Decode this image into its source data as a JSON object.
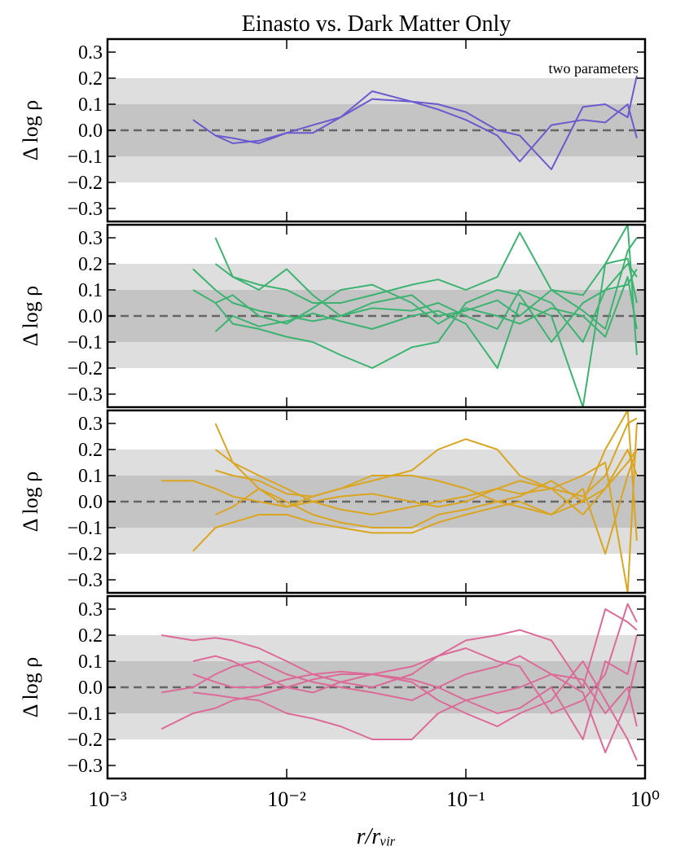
{
  "chart_data": [
    {
      "type": "line",
      "title": "Einasto vs. Dark Matter Only",
      "annotation": "two parameters",
      "ylabel": "Δ log ρ",
      "log_x": true,
      "xlim": [
        0.001,
        1
      ],
      "ylim": [
        -0.35,
        0.35
      ],
      "yticks": [
        {
          "value": -0.3,
          "label": "−0.3"
        },
        {
          "value": -0.2,
          "label": "−0.2"
        },
        {
          "value": -0.1,
          "label": "−0.1"
        },
        {
          "value": 0,
          "label": "0.0"
        },
        0.1,
        0.2,
        0.3
      ],
      "bands": [
        {
          "limit": 0.2,
          "color": "#dedede"
        },
        {
          "limit": 0.1,
          "color": "#c4c4c4"
        }
      ],
      "reference_line": 0,
      "color": "#6a5acd",
      "x": [
        0.002,
        0.003,
        0.004,
        0.005,
        0.007,
        0.01,
        0.014,
        0.02,
        0.03,
        0.05,
        0.07,
        0.1,
        0.15,
        0.2,
        0.3,
        0.45,
        0.6,
        0.8,
        0.9
      ],
      "series": [
        {
          "values": [
            null,
            0.04,
            -0.02,
            -0.05,
            -0.04,
            -0.01,
            0.02,
            0.05,
            0.12,
            0.11,
            0.08,
            0.04,
            -0.02,
            -0.12,
            0.02,
            0.04,
            0.03,
            0.1,
            -0.03
          ]
        },
        {
          "values": [
            null,
            null,
            -0.02,
            -0.03,
            -0.05,
            -0.01,
            -0.01,
            0.05,
            0.15,
            0.11,
            0.1,
            0.07,
            0.0,
            -0.02,
            -0.15,
            0.09,
            0.1,
            0.05,
            0.21
          ]
        }
      ]
    },
    {
      "type": "line",
      "ylabel": "Δ log ρ",
      "log_x": true,
      "xlim": [
        0.001,
        1
      ],
      "ylim": [
        -0.35,
        0.35
      ],
      "yticks": [
        {
          "value": -0.3,
          "label": "−0.3"
        },
        {
          "value": -0.2,
          "label": "−0.2"
        },
        {
          "value": -0.1,
          "label": "−0.1"
        },
        {
          "value": 0,
          "label": "0.0"
        },
        0.1,
        0.2,
        0.3
      ],
      "bands": [
        {
          "limit": 0.2,
          "color": "#dedede"
        },
        {
          "limit": 0.1,
          "color": "#c4c4c4"
        }
      ],
      "reference_line": 0,
      "color": "#3cb371",
      "x": [
        0.002,
        0.003,
        0.004,
        0.005,
        0.007,
        0.01,
        0.014,
        0.02,
        0.03,
        0.05,
        0.07,
        0.1,
        0.15,
        0.2,
        0.3,
        0.45,
        0.6,
        0.8,
        0.9
      ],
      "series": [
        {
          "values": [
            null,
            0.18,
            0.1,
            0.05,
            0.02,
            0.0,
            -0.02,
            0.0,
            0.03,
            0.02,
            0.05,
            0.0,
            -0.05,
            0.1,
            0.05,
            -0.1,
            0.1,
            0.2,
            0.15
          ]
        },
        {
          "values": [
            null,
            null,
            0.3,
            0.15,
            0.12,
            0.1,
            0.05,
            0.05,
            0.08,
            0.12,
            0.14,
            0.1,
            0.15,
            0.32,
            0.1,
            0.02,
            -0.05,
            0.25,
            0.3
          ]
        },
        {
          "values": [
            null,
            null,
            -0.06,
            0.0,
            -0.04,
            -0.02,
            0.01,
            -0.02,
            -0.05,
            0.0,
            0.02,
            -0.03,
            -0.2,
            0.05,
            0.0,
            -0.35,
            0.2,
            0.35,
            -0.15
          ]
        },
        {
          "values": [
            null,
            0.1,
            0.05,
            -0.03,
            -0.05,
            -0.08,
            -0.1,
            -0.15,
            -0.2,
            -0.12,
            -0.1,
            0.05,
            0.1,
            0.08,
            -0.1,
            0.05,
            0.1,
            0.12,
            0.18
          ]
        },
        {
          "values": [
            null,
            null,
            0.2,
            0.15,
            0.1,
            0.18,
            0.08,
            0.0,
            0.05,
            0.08,
            0.0,
            0.02,
            0.06,
            0.0,
            0.1,
            0.08,
            0.2,
            0.22,
            0.05
          ]
        },
        {
          "values": [
            null,
            null,
            0.05,
            0.08,
            0.0,
            -0.03,
            0.03,
            0.1,
            0.12,
            0.05,
            -0.03,
            0.03,
            0.0,
            -0.03,
            0.03,
            0.0,
            -0.08,
            0.15,
            -0.05
          ]
        }
      ]
    },
    {
      "type": "line",
      "ylabel": "Δ log ρ",
      "log_x": true,
      "xlim": [
        0.001,
        1
      ],
      "ylim": [
        -0.35,
        0.35
      ],
      "yticks": [
        {
          "value": -0.3,
          "label": "−0.3"
        },
        {
          "value": -0.2,
          "label": "−0.2"
        },
        {
          "value": -0.1,
          "label": "−0.1"
        },
        {
          "value": 0,
          "label": "0.0"
        },
        0.1,
        0.2,
        0.3
      ],
      "bands": [
        {
          "limit": 0.2,
          "color": "#dedede"
        },
        {
          "limit": 0.1,
          "color": "#c4c4c4"
        }
      ],
      "reference_line": 0,
      "color": "#daa520",
      "x": [
        0.002,
        0.003,
        0.004,
        0.005,
        0.007,
        0.01,
        0.014,
        0.02,
        0.03,
        0.05,
        0.07,
        0.1,
        0.15,
        0.2,
        0.3,
        0.45,
        0.6,
        0.8,
        0.9
      ],
      "series": [
        {
          "values": [
            0.08,
            0.08,
            0.05,
            0.02,
            0.0,
            -0.02,
            0.02,
            0.05,
            0.08,
            0.12,
            0.2,
            0.24,
            0.2,
            0.1,
            0.05,
            0.02,
            0.1,
            0.3,
            0.32
          ]
        },
        {
          "values": [
            null,
            -0.19,
            -0.1,
            -0.08,
            -0.05,
            -0.05,
            -0.08,
            -0.1,
            -0.12,
            -0.12,
            -0.08,
            -0.05,
            -0.02,
            0.0,
            -0.05,
            0.0,
            0.05,
            0.15,
            0.2
          ]
        },
        {
          "values": [
            null,
            null,
            0.2,
            0.15,
            0.1,
            0.05,
            0.0,
            -0.03,
            -0.05,
            -0.02,
            0.0,
            0.02,
            0.05,
            0.08,
            0.05,
            0.1,
            0.15,
            -0.35,
            0.3
          ]
        },
        {
          "values": [
            null,
            null,
            0.12,
            0.1,
            0.08,
            0.03,
            0.02,
            0.05,
            0.1,
            0.1,
            0.08,
            0.05,
            0.0,
            -0.02,
            -0.05,
            0.05,
            -0.2,
            0.1,
            0.2
          ]
        },
        {
          "values": [
            null,
            null,
            -0.05,
            -0.02,
            0.05,
            0.0,
            -0.05,
            -0.08,
            -0.1,
            -0.1,
            -0.05,
            -0.03,
            0.0,
            0.02,
            0.08,
            0.0,
            0.2,
            0.35,
            -0.15
          ]
        },
        {
          "values": [
            null,
            null,
            0.3,
            0.15,
            0.05,
            -0.02,
            0.0,
            0.02,
            0.03,
            0.0,
            -0.02,
            0.0,
            0.05,
            0.03,
            0.05,
            -0.05,
            0.05,
            0.2,
            0.1
          ]
        }
      ]
    },
    {
      "type": "line",
      "ylabel": "Δ log ρ",
      "xlabel": "r/rᵥᵢᵣ",
      "log_x": true,
      "xlim": [
        0.001,
        1
      ],
      "ylim": [
        -0.35,
        0.35
      ],
      "xticks": [
        {
          "value": 0.001,
          "label": "10⁻³"
        },
        {
          "value": 0.01,
          "label": "10⁻²"
        },
        {
          "value": 0.1,
          "label": "10⁻¹"
        },
        {
          "value": 1,
          "label": "10⁰"
        }
      ],
      "yticks": [
        {
          "value": -0.3,
          "label": "−0.3"
        },
        {
          "value": -0.2,
          "label": "−0.2"
        },
        {
          "value": -0.1,
          "label": "−0.1"
        },
        {
          "value": 0,
          "label": "0.0"
        },
        0.1,
        0.2,
        0.3
      ],
      "bands": [
        {
          "limit": 0.2,
          "color": "#dedede"
        },
        {
          "limit": 0.1,
          "color": "#c4c4c4"
        }
      ],
      "reference_line": 0,
      "color": "#dc6b99",
      "x": [
        0.002,
        0.003,
        0.004,
        0.005,
        0.007,
        0.01,
        0.014,
        0.02,
        0.03,
        0.05,
        0.07,
        0.1,
        0.15,
        0.2,
        0.3,
        0.45,
        0.6,
        0.8,
        0.9
      ],
      "series": [
        {
          "values": [
            0.2,
            0.18,
            0.19,
            0.18,
            0.15,
            0.1,
            0.05,
            0.02,
            0.0,
            0.05,
            0.12,
            0.18,
            0.2,
            0.22,
            0.18,
            0.0,
            0.3,
            0.25,
            0.22
          ]
        },
        {
          "values": [
            -0.16,
            -0.1,
            -0.08,
            -0.05,
            -0.03,
            0.0,
            0.03,
            0.05,
            0.05,
            0.03,
            0.0,
            -0.05,
            -0.1,
            -0.08,
            0.0,
            -0.2,
            0.1,
            0.05,
            0.2
          ]
        },
        {
          "values": [
            null,
            0.05,
            0.02,
            0.0,
            0.0,
            0.03,
            0.05,
            0.06,
            0.05,
            0.02,
            -0.05,
            -0.1,
            -0.15,
            -0.1,
            -0.05,
            0.1,
            -0.05,
            -0.2,
            -0.28
          ]
        },
        {
          "values": [
            null,
            -0.02,
            -0.03,
            -0.04,
            -0.05,
            -0.1,
            -0.12,
            -0.15,
            -0.2,
            -0.2,
            -0.1,
            -0.05,
            -0.02,
            0.0,
            0.05,
            0.03,
            -0.1,
            0.0,
            -0.15
          ]
        },
        {
          "values": [
            null,
            0.1,
            0.12,
            0.1,
            0.05,
            0.0,
            -0.02,
            0.02,
            0.05,
            0.08,
            0.12,
            0.15,
            0.1,
            0.08,
            -0.1,
            -0.05,
            0.05,
            0.32,
            0.25
          ]
        },
        {
          "values": [
            -0.02,
            0.0,
            0.05,
            0.08,
            0.1,
            0.05,
            0.02,
            0.0,
            -0.02,
            -0.05,
            0.0,
            0.05,
            0.08,
            0.12,
            0.05,
            -0.02,
            -0.25,
            -0.05,
            0.1
          ]
        }
      ]
    }
  ]
}
